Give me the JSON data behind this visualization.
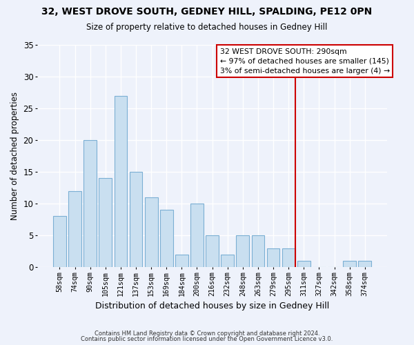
{
  "title": "32, WEST DROVE SOUTH, GEDNEY HILL, SPALDING, PE12 0PN",
  "subtitle": "Size of property relative to detached houses in Gedney Hill",
  "xlabel": "Distribution of detached houses by size in Gedney Hill",
  "ylabel": "Number of detached properties",
  "bar_labels": [
    "58sqm",
    "74sqm",
    "90sqm",
    "105sqm",
    "121sqm",
    "137sqm",
    "153sqm",
    "169sqm",
    "184sqm",
    "200sqm",
    "216sqm",
    "232sqm",
    "248sqm",
    "263sqm",
    "279sqm",
    "295sqm",
    "311sqm",
    "327sqm",
    "342sqm",
    "358sqm",
    "374sqm"
  ],
  "bar_heights": [
    8,
    12,
    20,
    14,
    27,
    15,
    11,
    9,
    2,
    10,
    5,
    2,
    5,
    5,
    3,
    3,
    1,
    0,
    0,
    1,
    1
  ],
  "bar_color": "#c9dff0",
  "bar_edge_color": "#7bafd4",
  "ylim": [
    0,
    35
  ],
  "yticks": [
    0,
    5,
    10,
    15,
    20,
    25,
    30,
    35
  ],
  "vline_color": "#cc0000",
  "annotation_title": "32 WEST DROVE SOUTH: 290sqm",
  "annotation_line1": "← 97% of detached houses are smaller (145)",
  "annotation_line2": "3% of semi-detached houses are larger (4) →",
  "annotation_box_edge": "#cc0000",
  "footnote1": "Contains HM Land Registry data © Crown copyright and database right 2024.",
  "footnote2": "Contains public sector information licensed under the Open Government Licence v3.0.",
  "background_color": "#eef2fb"
}
